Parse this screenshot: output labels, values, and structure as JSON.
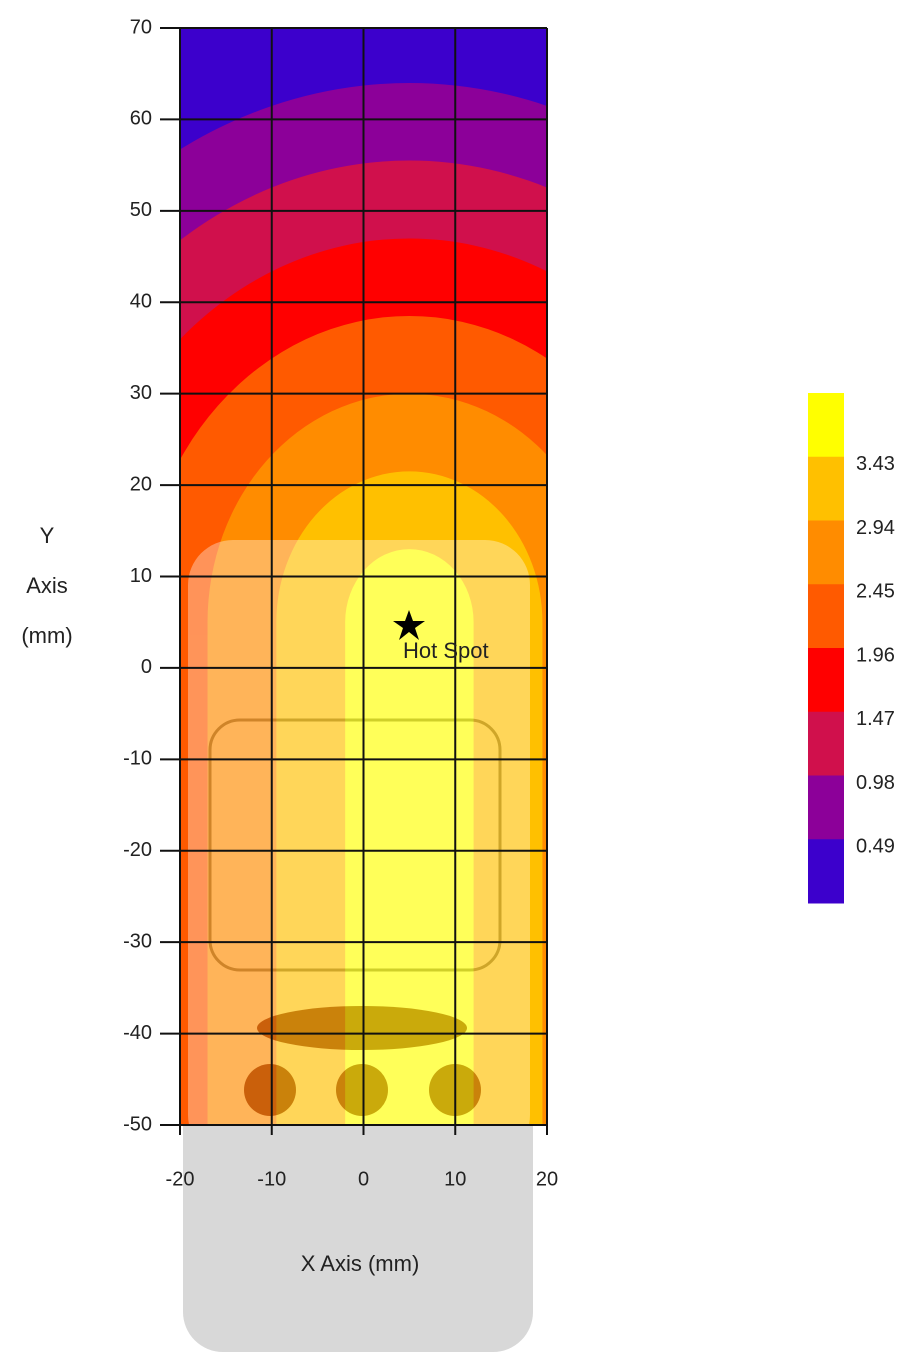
{
  "chart_data": {
    "type": "contour",
    "xlabel": "X Axis (mm)",
    "ylabel_lines": [
      "Y",
      "Axis",
      "(mm)"
    ],
    "xlim": [
      -20,
      20
    ],
    "ylim": [
      -50,
      70
    ],
    "xticks": [
      -20,
      -10,
      0,
      10,
      20
    ],
    "yticks": [
      -50,
      -40,
      -30,
      -20,
      -10,
      0,
      10,
      20,
      30,
      40,
      50,
      60,
      70
    ],
    "grid": true,
    "colorbar": {
      "colors": [
        "#ffff00",
        "#ffc000",
        "#ff8c00",
        "#ff5a00",
        "#ff0000",
        "#d0104c",
        "#8c0099",
        "#3c00cc"
      ],
      "ticks": [
        3.43,
        2.94,
        2.45,
        1.96,
        1.47,
        0.98,
        0.49
      ]
    },
    "annotation": {
      "text": "Hot Spot",
      "x": 5,
      "y": 5
    }
  }
}
